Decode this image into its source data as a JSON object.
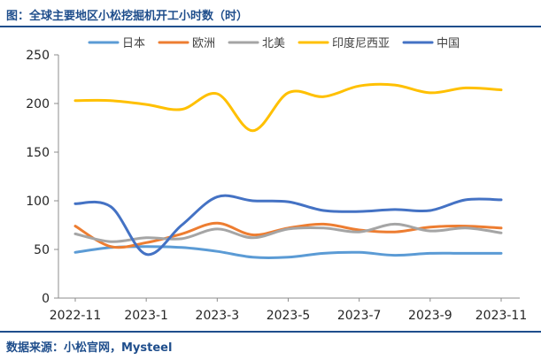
{
  "header": {
    "title": "图：全球主要地区小松挖掘机开工小时数（时）"
  },
  "footer": {
    "source": "数据来源：小松官网，Mysteel"
  },
  "chart_data": {
    "type": "line",
    "title": "图：全球主要地区小松挖掘机开工小时数（时）",
    "xlabel": "",
    "ylabel": "",
    "x": [
      "2022-11",
      "2022-12",
      "2023-1",
      "2023-2",
      "2023-3",
      "2023-4",
      "2023-5",
      "2023-6",
      "2023-7",
      "2023-8",
      "2023-9",
      "2023-10",
      "2023-11"
    ],
    "x_tick_labels": [
      "2022-11",
      "2023-1",
      "2023-3",
      "2023-5",
      "2023-7",
      "2023-9",
      "2023-11"
    ],
    "ylim": [
      0,
      250
    ],
    "y_ticks": [
      0,
      50,
      100,
      150,
      200,
      250
    ],
    "grid": false,
    "legend_position": "top",
    "series": [
      {
        "name": "日本",
        "color": "#5b9bd5",
        "values": [
          47,
          52,
          53,
          52,
          48,
          42,
          42,
          46,
          47,
          44,
          46,
          46,
          46
        ]
      },
      {
        "name": "欧洲",
        "color": "#ed7d31",
        "values": [
          74,
          53,
          57,
          66,
          77,
          65,
          72,
          76,
          70,
          68,
          73,
          74,
          72
        ]
      },
      {
        "name": "北美",
        "color": "#a5a5a5",
        "values": [
          66,
          58,
          62,
          61,
          71,
          62,
          71,
          72,
          68,
          76,
          69,
          72,
          67
        ]
      },
      {
        "name": "印度尼西亚",
        "color": "#ffc000",
        "values": [
          203,
          203,
          199,
          194,
          210,
          172,
          211,
          207,
          218,
          219,
          211,
          216,
          214
        ]
      },
      {
        "name": "中国",
        "color": "#4472c4",
        "values": [
          97,
          94,
          45,
          75,
          104,
          100,
          99,
          90,
          89,
          91,
          90,
          101,
          101
        ]
      }
    ]
  }
}
